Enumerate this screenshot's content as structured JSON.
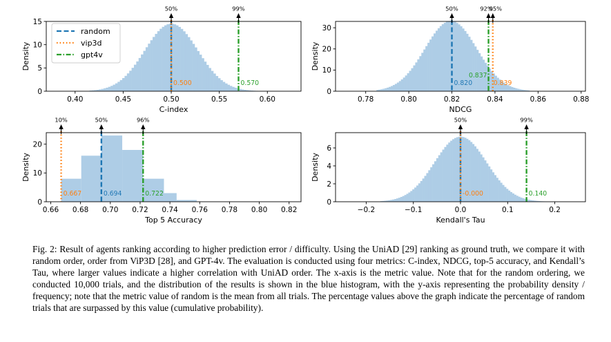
{
  "colors": {
    "hist": "#aecde6",
    "random": "#1f77b4",
    "vip3d": "#ff7f0e",
    "gpt4v": "#2ca02c",
    "axis": "#000000"
  },
  "legend": {
    "entries": [
      {
        "key": "random",
        "label": "random",
        "style": "dashed"
      },
      {
        "key": "vip3d",
        "label": "vip3d",
        "style": "dotted"
      },
      {
        "key": "gpt4v",
        "label": "gpt4v",
        "style": "dashdot"
      }
    ],
    "placement": "top-left of first panel"
  },
  "chart_data": [
    {
      "id": "cindex",
      "type": "histogram",
      "xlabel": "C-index",
      "ylabel": "Density",
      "xlim": [
        0.37,
        0.635
      ],
      "ylim": [
        0,
        15
      ],
      "xticks": [
        0.4,
        0.45,
        0.5,
        0.55,
        0.6
      ],
      "xtick_labels": [
        "0.40",
        "0.45",
        "0.50",
        "0.55",
        "0.60"
      ],
      "yticks": [
        0,
        5,
        10,
        15
      ],
      "ytick_labels": [
        "0",
        "5",
        "10",
        "15"
      ],
      "distribution": {
        "mean": 0.5,
        "sd": 0.0275,
        "range": [
          0.415,
          0.59
        ],
        "bins": 72
      },
      "markers": [
        {
          "method": "random",
          "x": 0.5,
          "percentile": "50%",
          "value_label": "0.500",
          "label_color": "vip3d"
        },
        {
          "method": "vip3d",
          "x": 0.5,
          "percentile": "",
          "value_label": "",
          "label_color": "vip3d"
        },
        {
          "method": "gpt4v",
          "x": 0.57,
          "percentile": "99%",
          "value_label": "0.570",
          "label_color": "gpt4v"
        }
      ]
    },
    {
      "id": "ndcg",
      "type": "histogram",
      "xlabel": "NDCG",
      "ylabel": "Density",
      "xlim": [
        0.766,
        0.882
      ],
      "ylim": [
        0,
        33
      ],
      "xticks": [
        0.78,
        0.8,
        0.82,
        0.84,
        0.86,
        0.88
      ],
      "xtick_labels": [
        "0.78",
        "0.80",
        "0.82",
        "0.84",
        "0.86",
        "0.88"
      ],
      "yticks": [
        0,
        10,
        20,
        30
      ],
      "ytick_labels": [
        "0",
        "10",
        "20",
        "30"
      ],
      "distribution": {
        "mean": 0.8195,
        "sd": 0.012,
        "range": [
          0.785,
          0.856
        ],
        "bins": 75
      },
      "markers": [
        {
          "method": "random",
          "x": 0.82,
          "percentile": "50%",
          "value_label": "0.820",
          "label_color": "random"
        },
        {
          "method": "vip3d",
          "x": 0.839,
          "percentile": "95%",
          "value_label": "0.839",
          "label_color": "vip3d"
        },
        {
          "method": "gpt4v",
          "x": 0.837,
          "percentile": "92%",
          "value_label": "0.837",
          "label_color": "gpt4v"
        }
      ]
    },
    {
      "id": "top5",
      "type": "histogram",
      "xlabel": "Top 5 Accuracy",
      "ylabel": "Density",
      "xlim": [
        0.657,
        0.828
      ],
      "ylim": [
        0,
        24
      ],
      "xticks": [
        0.66,
        0.68,
        0.7,
        0.72,
        0.74,
        0.76,
        0.78,
        0.8,
        0.82
      ],
      "xtick_labels": [
        "0.66",
        "0.68",
        "0.70",
        "0.72",
        "0.74",
        "0.76",
        "0.78",
        "0.80",
        "0.82"
      ],
      "yticks": [
        0,
        10,
        20
      ],
      "ytick_labels": [
        "0",
        "10",
        "20"
      ],
      "bars": [
        {
          "x0": 0.667,
          "x1": 0.6805,
          "h": 8
        },
        {
          "x0": 0.6805,
          "x1": 0.694,
          "h": 16
        },
        {
          "x0": 0.694,
          "x1": 0.708,
          "h": 23
        },
        {
          "x0": 0.708,
          "x1": 0.722,
          "h": 18
        },
        {
          "x0": 0.722,
          "x1": 0.736,
          "h": 8
        },
        {
          "x0": 0.736,
          "x1": 0.7445,
          "h": 3
        },
        {
          "x0": 0.7445,
          "x1": 0.758,
          "h": 0.6
        }
      ],
      "markers": [
        {
          "method": "random",
          "x": 0.694,
          "percentile": "50%",
          "value_label": "0.694",
          "label_color": "random"
        },
        {
          "method": "vip3d",
          "x": 0.667,
          "percentile": "10%",
          "value_label": "0.667",
          "label_color": "vip3d"
        },
        {
          "method": "gpt4v",
          "x": 0.722,
          "percentile": "96%",
          "value_label": "0.722",
          "label_color": "gpt4v"
        }
      ]
    },
    {
      "id": "kendall",
      "type": "histogram",
      "xlabel": "Kendall's Tau",
      "ylabel": "Density",
      "xlim": [
        -0.265,
        0.265
      ],
      "ylim": [
        0,
        7.7
      ],
      "xticks": [
        -0.2,
        -0.1,
        0.0,
        0.1,
        0.2
      ],
      "xtick_labels": [
        "−0.2",
        "−0.1",
        "0.0",
        "0.1",
        "0.2"
      ],
      "yticks": [
        0,
        2,
        4,
        6
      ],
      "ytick_labels": [
        "0",
        "2",
        "4",
        "6"
      ],
      "distribution": {
        "mean": 0.0,
        "sd": 0.055,
        "range": [
          -0.17,
          0.19
        ],
        "bins": 85
      },
      "markers": [
        {
          "method": "random",
          "x": 0.0,
          "percentile": "50%",
          "value_label": "-0.000",
          "label_color": "vip3d"
        },
        {
          "method": "vip3d",
          "x": 0.0,
          "percentile": "",
          "value_label": "",
          "label_color": "vip3d"
        },
        {
          "method": "gpt4v",
          "x": 0.14,
          "percentile": "99%",
          "value_label": "0.140",
          "label_color": "gpt4v"
        }
      ]
    }
  ],
  "caption": "Fig. 2: Result of agents ranking according to higher prediction error / difficulty. Using the UniAD [29] ranking as ground truth, we compare it with random order, order from ViP3D [28], and GPT-4v. The evaluation is conducted using four metrics: C-index, NDCG, top-5 accuracy, and Kendall’s Tau, where larger values indicate a higher correlation with UniAD order. The x-axis is the metric value. Note that for the random ordering, we conducted 10,000 trials, and the distribution of the results is shown in the blue histogram, with the y-axis representing the probability density / frequency; note that the metric value of random is the mean from all trials. The percentage values above the graph indicate the percentage of random trials that are surpassed by this value (cumulative probability)."
}
